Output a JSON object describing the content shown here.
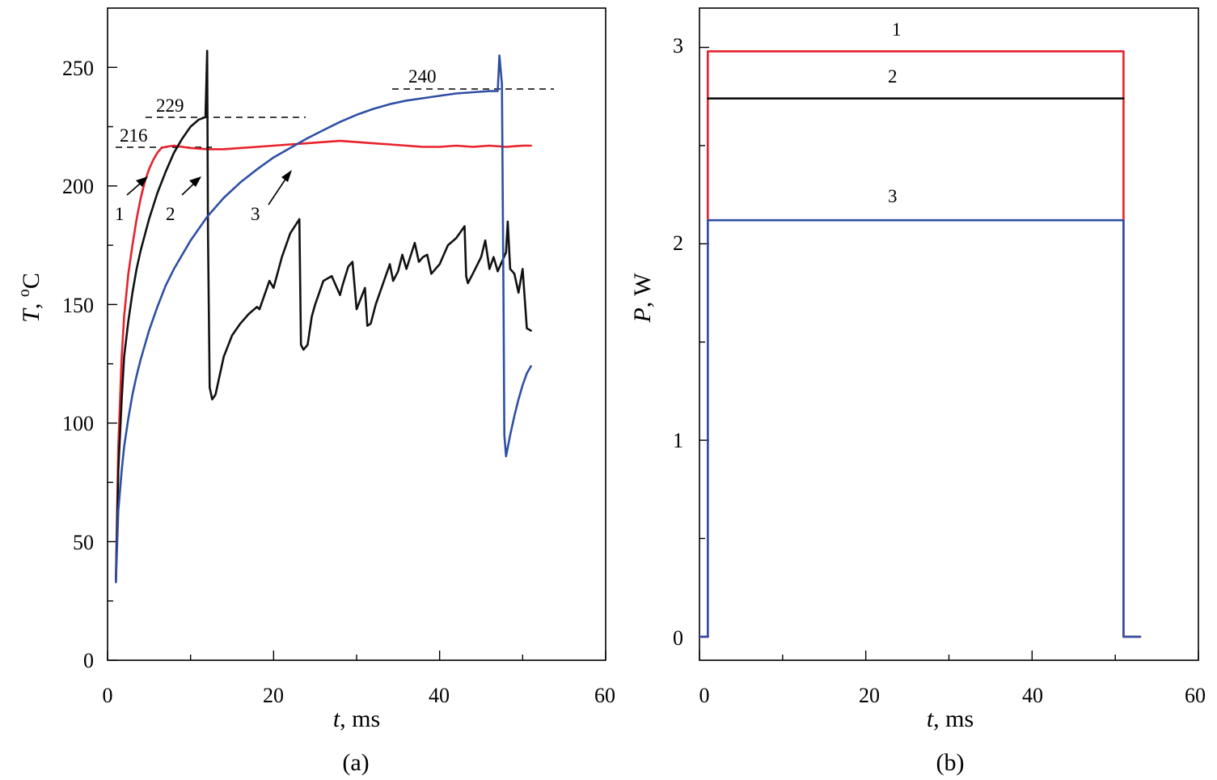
{
  "chart_data": [
    {
      "type": "line",
      "panel_label": "(a)",
      "xlabel": {
        "var": "t",
        "unit": ", ms"
      },
      "ylabel": {
        "var": "T",
        "unit": ", ",
        "sup": "o",
        "unit2": "C"
      },
      "xlim": [
        0,
        60
      ],
      "ylim": [
        0,
        275
      ],
      "xticks": [
        0,
        20,
        40,
        60
      ],
      "xtick_labels": [
        "0",
        "20",
        "40",
        "60"
      ],
      "yticks": [
        0,
        50,
        100,
        150,
        200,
        250
      ],
      "ytick_labels": [
        "0",
        "50",
        "100",
        "150",
        "200",
        "250"
      ],
      "colors": {
        "red": "#e8212b",
        "black": "#111111",
        "blue": "#2e4fa3"
      },
      "series": [
        {
          "name": "1",
          "color": "#e8212b",
          "x": [
            1.0,
            1.3,
            1.7,
            2.0,
            2.5,
            3.0,
            3.5,
            4.0,
            4.5,
            5.0,
            5.5,
            6.0,
            6.5,
            7.0,
            8.0,
            9.0,
            10,
            12,
            14,
            16,
            18,
            20,
            22,
            24,
            26,
            28,
            30,
            32,
            34,
            36,
            38,
            40,
            42,
            44,
            46,
            48,
            50,
            51
          ],
          "y": [
            33,
            90,
            128,
            145,
            163,
            175,
            186,
            195,
            202,
            207,
            211,
            214,
            216,
            216.5,
            217,
            216.5,
            216,
            215.5,
            215.5,
            216,
            216.5,
            217,
            217.5,
            218,
            218.5,
            219,
            218.5,
            218,
            217.5,
            217,
            216.5,
            216.5,
            217,
            216.5,
            217,
            216.5,
            217,
            217
          ]
        },
        {
          "name": "2",
          "color": "#111111",
          "x": [
            1.0,
            1.3,
            1.7,
            2.0,
            2.5,
            3.0,
            3.5,
            4.0,
            5.0,
            6.0,
            7.0,
            8.0,
            9.0,
            10.0,
            11.0,
            11.8,
            12.0,
            12.1,
            12.3,
            12.6,
            13,
            14,
            15,
            16,
            17,
            18,
            18.3,
            19,
            19.5,
            20,
            21,
            22,
            23.1,
            23.3,
            23.6,
            24.1,
            24.6,
            25,
            26,
            27,
            28,
            28.3,
            29,
            29.5,
            30,
            31,
            31.3,
            31.7,
            32.3,
            33,
            34,
            34.4,
            35,
            35.5,
            36,
            37,
            37.5,
            38,
            38.5,
            39,
            40,
            41,
            42,
            43,
            43.2,
            43.4,
            44,
            45,
            45.5,
            46,
            46.5,
            47,
            48,
            48.2,
            48.5,
            49,
            49.5,
            50,
            50.2,
            50.5,
            51
          ],
          "y": [
            33,
            80,
            110,
            128,
            143,
            155,
            165,
            173,
            186,
            197,
            206,
            214,
            220,
            225,
            228,
            229,
            257,
            180,
            115,
            110,
            112,
            128,
            137,
            142,
            146,
            149,
            148,
            155,
            160,
            157,
            170,
            180,
            186,
            133,
            131,
            133,
            145,
            150,
            160,
            162,
            154,
            158,
            166,
            168,
            148,
            157,
            141,
            142,
            150,
            157,
            167,
            160,
            164,
            171,
            165,
            176,
            168,
            170,
            171,
            163,
            167,
            175,
            178,
            183,
            162,
            159,
            163,
            170,
            177,
            165,
            170,
            164,
            172,
            185,
            165,
            163,
            155,
            165,
            155,
            140,
            139
          ]
        },
        {
          "name": "3",
          "color": "#2e4fa3",
          "x": [
            1.0,
            1.3,
            1.7,
            2.0,
            2.5,
            3.0,
            3.5,
            4.0,
            5.0,
            6.0,
            7.0,
            8.0,
            10,
            12,
            14,
            16,
            18,
            20,
            22,
            24,
            26,
            28,
            30,
            32,
            34,
            36,
            38,
            40,
            42,
            44,
            46,
            47.0,
            47.2,
            47.5,
            47.7,
            47.8,
            48.0,
            48.5,
            49,
            49.5,
            50,
            50.5,
            51
          ],
          "y": [
            33,
            63,
            80,
            90,
            102,
            112,
            120,
            127,
            139,
            149,
            158,
            165,
            177,
            187,
            195,
            201.5,
            207,
            212,
            216,
            220,
            223.5,
            227,
            230,
            232.5,
            234.5,
            236,
            237,
            238,
            239,
            239.5,
            240,
            240,
            255,
            243,
            150,
            95,
            86,
            95,
            103,
            110,
            116,
            121,
            124
          ]
        }
      ],
      "curve_labels": [
        "1",
        "2",
        "3"
      ],
      "annotations": [
        {
          "text": "216",
          "value": 216
        },
        {
          "text": "229",
          "value": 229
        },
        {
          "text": "240",
          "value": 240
        }
      ]
    },
    {
      "type": "line",
      "panel_label": "(b)",
      "xlabel": {
        "var": "t",
        "unit": ", ms"
      },
      "ylabel": {
        "var": "P",
        "unit": ", W"
      },
      "xlim": [
        0,
        60
      ],
      "ylim": [
        -0.12,
        3.2
      ],
      "xticks": [
        0,
        20,
        40,
        60
      ],
      "xtick_labels": [
        "0",
        "20",
        "40",
        "60"
      ],
      "yticks": [
        0,
        1,
        2,
        3
      ],
      "ytick_labels": [
        "0",
        "1",
        "2",
        "3"
      ],
      "series": [
        {
          "name": "1",
          "color": "#e8212b",
          "x": [
            0.0,
            1.0,
            1.0,
            51.0,
            51.0,
            53.0
          ],
          "y": [
            0,
            0,
            2.98,
            2.98,
            0,
            0
          ]
        },
        {
          "name": "2",
          "color": "#111111",
          "x": [
            1.0,
            51.0
          ],
          "y": [
            2.74,
            2.74
          ]
        },
        {
          "name": "3",
          "color": "#2e4fa3",
          "x": [
            0.0,
            1.0,
            1.0,
            51.0,
            51.0,
            53.0
          ],
          "y": [
            0,
            0,
            2.12,
            2.12,
            0,
            0
          ]
        }
      ],
      "curve_labels": [
        "1",
        "2",
        "3"
      ]
    }
  ]
}
